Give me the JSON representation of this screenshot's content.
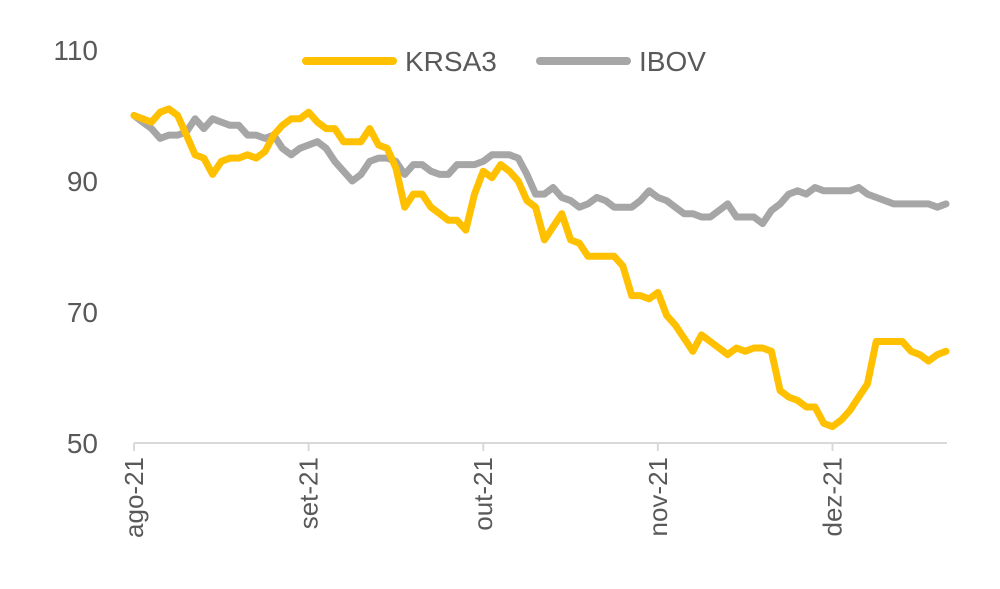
{
  "chart_data": {
    "type": "line",
    "title": "",
    "xlabel": "",
    "ylabel": "",
    "ylim": [
      50,
      110
    ],
    "yticks": [
      "50",
      "70",
      "90",
      "110"
    ],
    "x_range": [
      0,
      93
    ],
    "x_ticks": [
      {
        "label": "ago-21",
        "x": 0
      },
      {
        "label": "set-21",
        "x": 20
      },
      {
        "label": "out-21",
        "x": 40
      },
      {
        "label": "nov-21",
        "x": 60
      },
      {
        "label": "dez-21",
        "x": 80
      }
    ],
    "grid": false,
    "legend_position": "top",
    "series": [
      {
        "name": "KRSA3",
        "color": "#FFC000",
        "points": [
          [
            0,
            100
          ],
          [
            1,
            99.5
          ],
          [
            2,
            99
          ],
          [
            3,
            100.5
          ],
          [
            4,
            101
          ],
          [
            5,
            100
          ],
          [
            6,
            97
          ],
          [
            7,
            94
          ],
          [
            8,
            93.5
          ],
          [
            9,
            91
          ],
          [
            10,
            93
          ],
          [
            11,
            93.5
          ],
          [
            12,
            93.5
          ],
          [
            13,
            94
          ],
          [
            14,
            93.5
          ],
          [
            15,
            94.5
          ],
          [
            16,
            97
          ],
          [
            17,
            98.5
          ],
          [
            18,
            99.5
          ],
          [
            19,
            99.5
          ],
          [
            20,
            100.5
          ],
          [
            21,
            99
          ],
          [
            22,
            98
          ],
          [
            23,
            98
          ],
          [
            24,
            96
          ],
          [
            25,
            96
          ],
          [
            26,
            96
          ],
          [
            27,
            98
          ],
          [
            28,
            95.5
          ],
          [
            29,
            95
          ],
          [
            30,
            92
          ],
          [
            31,
            86
          ],
          [
            32,
            88
          ],
          [
            33,
            88
          ],
          [
            34,
            86
          ],
          [
            35,
            85
          ],
          [
            36,
            84
          ],
          [
            37,
            84
          ],
          [
            38,
            82.5
          ],
          [
            39,
            88
          ],
          [
            40,
            91.5
          ],
          [
            41,
            90.5
          ],
          [
            42,
            92.5
          ],
          [
            43,
            91.5
          ],
          [
            44,
            90
          ],
          [
            45,
            87
          ],
          [
            46,
            86
          ],
          [
            47,
            81
          ],
          [
            48,
            83
          ],
          [
            49,
            85
          ],
          [
            50,
            81
          ],
          [
            51,
            80.5
          ],
          [
            52,
            78.5
          ],
          [
            53,
            78.5
          ],
          [
            54,
            78.5
          ],
          [
            55,
            78.5
          ],
          [
            56,
            77
          ],
          [
            57,
            72.5
          ],
          [
            58,
            72.5
          ],
          [
            59,
            72
          ],
          [
            60,
            73
          ],
          [
            61,
            69.5
          ],
          [
            62,
            68
          ],
          [
            63,
            66
          ],
          [
            64,
            64
          ],
          [
            65,
            66.5
          ],
          [
            66,
            65.5
          ],
          [
            67,
            64.5
          ],
          [
            68,
            63.5
          ],
          [
            69,
            64.5
          ],
          [
            70,
            64
          ],
          [
            71,
            64.5
          ],
          [
            72,
            64.5
          ],
          [
            73,
            64
          ],
          [
            74,
            58
          ],
          [
            75,
            57
          ],
          [
            76,
            56.5
          ],
          [
            77,
            55.5
          ],
          [
            78,
            55.5
          ],
          [
            79,
            53
          ],
          [
            80,
            52.5
          ],
          [
            81,
            53.5
          ],
          [
            82,
            55
          ],
          [
            83,
            57
          ],
          [
            84,
            59
          ],
          [
            85,
            65.5
          ],
          [
            86,
            65.5
          ],
          [
            87,
            65.5
          ],
          [
            88,
            65.5
          ],
          [
            89,
            64
          ],
          [
            90,
            63.5
          ],
          [
            91,
            62.5
          ],
          [
            92,
            63.5
          ],
          [
            93,
            64
          ]
        ]
      },
      {
        "name": "IBOV",
        "color": "#A6A6A6",
        "points": [
          [
            0,
            100
          ],
          [
            1,
            99
          ],
          [
            2,
            98
          ],
          [
            3,
            96.5
          ],
          [
            4,
            97
          ],
          [
            5,
            97
          ],
          [
            6,
            97.5
          ],
          [
            7,
            99.5
          ],
          [
            8,
            98
          ],
          [
            9,
            99.5
          ],
          [
            10,
            99
          ],
          [
            11,
            98.5
          ],
          [
            12,
            98.5
          ],
          [
            13,
            97
          ],
          [
            14,
            97
          ],
          [
            15,
            96.5
          ],
          [
            16,
            97
          ],
          [
            17,
            95
          ],
          [
            18,
            94
          ],
          [
            19,
            95
          ],
          [
            20,
            95.5
          ],
          [
            21,
            96
          ],
          [
            22,
            95
          ],
          [
            23,
            93
          ],
          [
            24,
            91.5
          ],
          [
            25,
            90
          ],
          [
            26,
            91
          ],
          [
            27,
            93
          ],
          [
            28,
            93.5
          ],
          [
            29,
            93.5
          ],
          [
            30,
            93
          ],
          [
            31,
            91
          ],
          [
            32,
            92.5
          ],
          [
            33,
            92.5
          ],
          [
            34,
            91.5
          ],
          [
            35,
            91
          ],
          [
            36,
            91
          ],
          [
            37,
            92.5
          ],
          [
            38,
            92.5
          ],
          [
            39,
            92.5
          ],
          [
            40,
            93
          ],
          [
            41,
            94
          ],
          [
            42,
            94
          ],
          [
            43,
            94
          ],
          [
            44,
            93.5
          ],
          [
            45,
            91
          ],
          [
            46,
            88
          ],
          [
            47,
            88
          ],
          [
            48,
            89
          ],
          [
            49,
            87.5
          ],
          [
            50,
            87
          ],
          [
            51,
            86
          ],
          [
            52,
            86.5
          ],
          [
            53,
            87.5
          ],
          [
            54,
            87
          ],
          [
            55,
            86
          ],
          [
            56,
            86
          ],
          [
            57,
            86
          ],
          [
            58,
            87
          ],
          [
            59,
            88.5
          ],
          [
            60,
            87.5
          ],
          [
            61,
            87
          ],
          [
            62,
            86
          ],
          [
            63,
            85
          ],
          [
            64,
            85
          ],
          [
            65,
            84.5
          ],
          [
            66,
            84.5
          ],
          [
            67,
            85.5
          ],
          [
            68,
            86.5
          ],
          [
            69,
            84.5
          ],
          [
            70,
            84.5
          ],
          [
            71,
            84.5
          ],
          [
            72,
            83.5
          ],
          [
            73,
            85.5
          ],
          [
            74,
            86.5
          ],
          [
            75,
            88
          ],
          [
            76,
            88.5
          ],
          [
            77,
            88
          ],
          [
            78,
            89
          ],
          [
            79,
            88.5
          ],
          [
            80,
            88.5
          ],
          [
            81,
            88.5
          ],
          [
            82,
            88.5
          ],
          [
            83,
            89
          ],
          [
            84,
            88
          ],
          [
            85,
            87.5
          ],
          [
            86,
            87
          ],
          [
            87,
            86.5
          ],
          [
            88,
            86.5
          ],
          [
            89,
            86.5
          ],
          [
            90,
            86.5
          ],
          [
            91,
            86.5
          ],
          [
            92,
            86
          ],
          [
            93,
            86.5
          ]
        ]
      }
    ]
  }
}
